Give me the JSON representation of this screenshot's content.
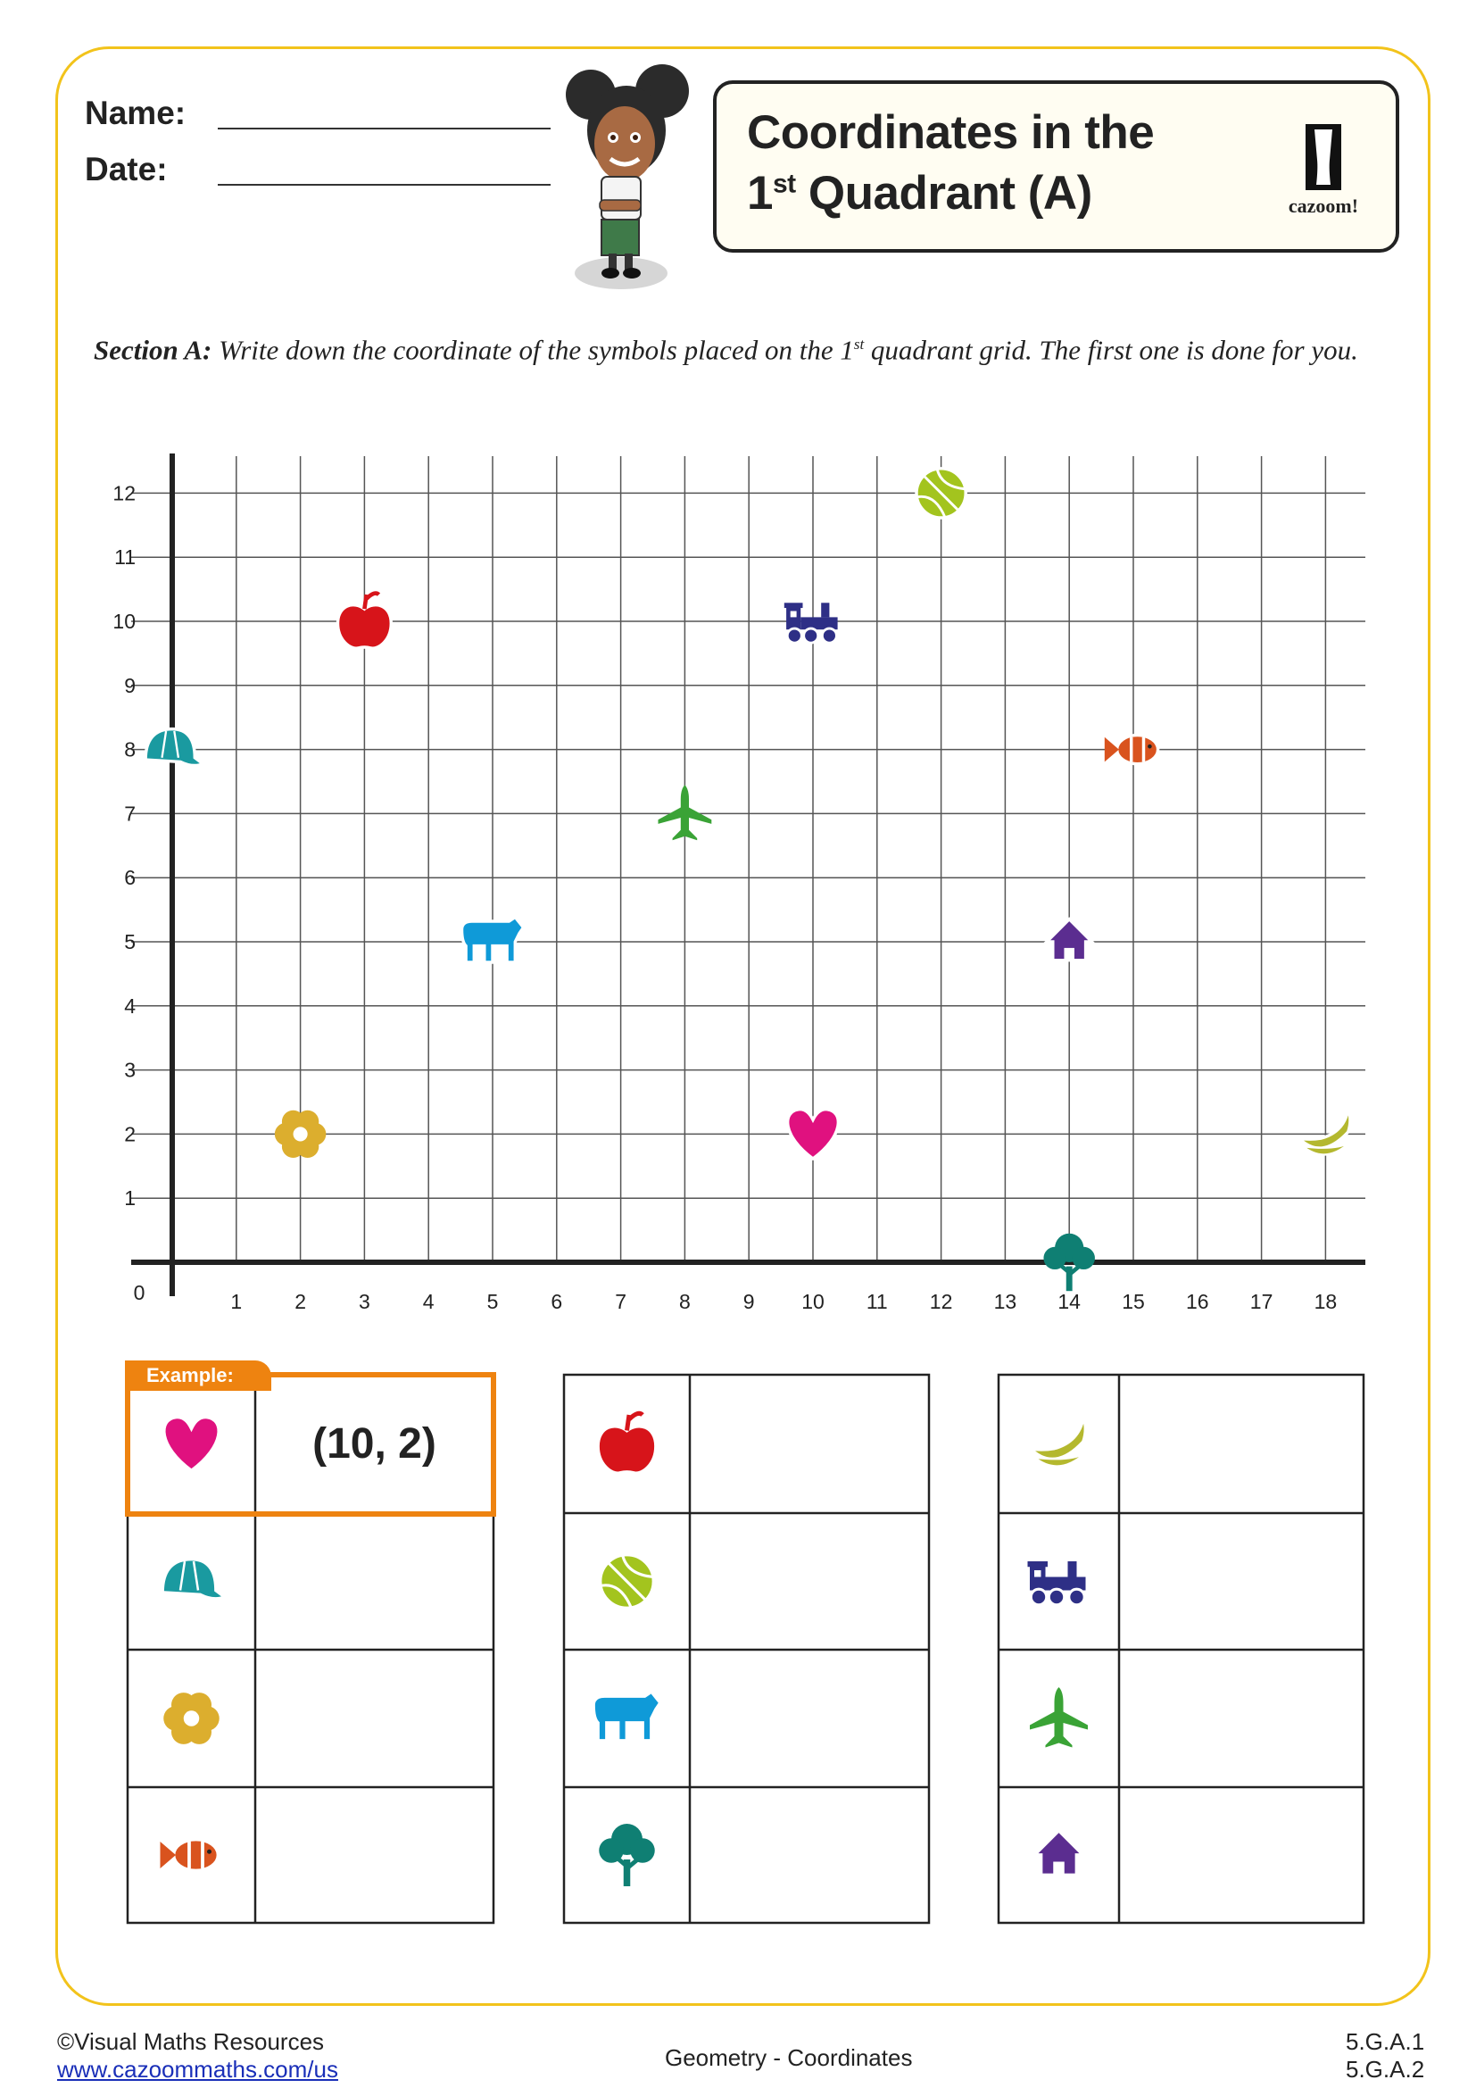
{
  "header": {
    "name_label": "Name:",
    "date_label": "Date:",
    "title_line1": "Coordinates in the",
    "title_line2_num": "1",
    "title_line2_sup": "st",
    "title_line2_rest": " Quadrant (A)",
    "logo_text": "cazoom!"
  },
  "instructions": {
    "section_label": "Section A:",
    "text_before_sup": " Write down the coordinate of the symbols placed on the 1",
    "sup": "st",
    "text_after_sup": " quadrant grid. The first one is done for you."
  },
  "chart_data": {
    "type": "scatter",
    "xlim": [
      0,
      18
    ],
    "ylim": [
      0,
      12
    ],
    "x_ticks": [
      1,
      2,
      3,
      4,
      5,
      6,
      7,
      8,
      9,
      10,
      11,
      12,
      13,
      14,
      15,
      16,
      17,
      18
    ],
    "y_ticks": [
      1,
      2,
      3,
      4,
      5,
      6,
      7,
      8,
      9,
      10,
      11,
      12
    ],
    "origin_label": "0",
    "grid": true,
    "points": [
      {
        "symbol": "heart",
        "x": 10,
        "y": 2,
        "color": "#e0117f"
      },
      {
        "symbol": "cap",
        "x": 0,
        "y": 8,
        "color": "#1a9aa0"
      },
      {
        "symbol": "flower",
        "x": 2,
        "y": 2,
        "color": "#dcae2e"
      },
      {
        "symbol": "fish",
        "x": 15,
        "y": 8,
        "color": "#d9531e"
      },
      {
        "symbol": "apple",
        "x": 3,
        "y": 10,
        "color": "#d7141a"
      },
      {
        "symbol": "ball",
        "x": 12,
        "y": 12,
        "color": "#a3c41e"
      },
      {
        "symbol": "bear",
        "x": 5,
        "y": 5,
        "color": "#0f9ad8"
      },
      {
        "symbol": "tree",
        "x": 14,
        "y": 0,
        "color": "#0f7f73"
      },
      {
        "symbol": "banana",
        "x": 18,
        "y": 2,
        "color": "#b4b82e"
      },
      {
        "symbol": "train",
        "x": 10,
        "y": 10,
        "color": "#2e2f86"
      },
      {
        "symbol": "plane",
        "x": 8,
        "y": 7,
        "color": "#3aa336"
      },
      {
        "symbol": "house",
        "x": 14,
        "y": 5,
        "color": "#5b2d90"
      }
    ]
  },
  "answers": {
    "example_label": "Example:",
    "example_answer": "(10, 2)",
    "tables": [
      [
        "heart",
        "cap",
        "flower",
        "fish"
      ],
      [
        "apple",
        "ball",
        "bear",
        "tree"
      ],
      [
        "banana",
        "train",
        "plane",
        "house"
      ]
    ]
  },
  "colors": {
    "frame": "#f2c31b",
    "example": "#ee8310"
  },
  "footer": {
    "copyright": "©Visual Maths Resources",
    "link": "www.cazoommaths.com/us",
    "topic": "Geometry - Coordinates",
    "standard1": "5.G.A.1",
    "standard2": "5.G.A.2"
  }
}
